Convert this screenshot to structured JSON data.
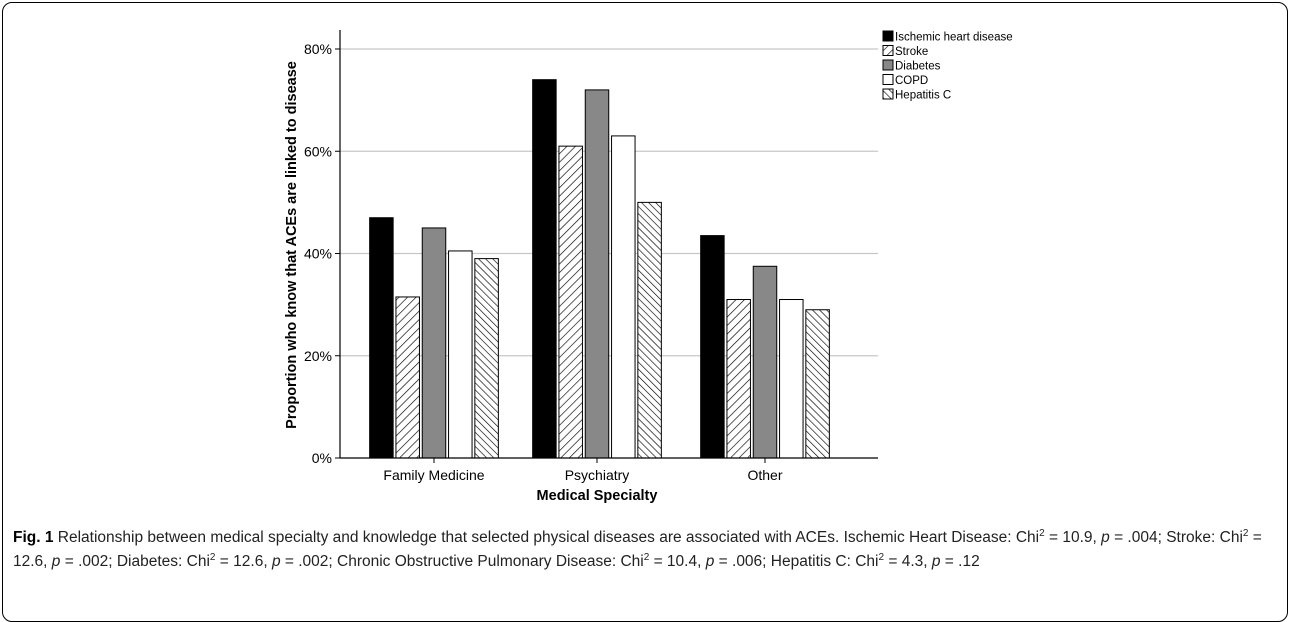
{
  "chart_data": {
    "type": "bar",
    "xlabel": "Medical Specialty",
    "ylabel": "Proportion who know that ACEs are linked to disease",
    "ylim": [
      0,
      80
    ],
    "yticks": [
      "0%",
      "20%",
      "40%",
      "60%",
      "80%"
    ],
    "grid": true,
    "legend_position": "top-right",
    "categories": [
      "Family Medicine",
      "Psychiatry",
      "Other"
    ],
    "series": [
      {
        "name": "Ischemic heart disease",
        "values": [
          47,
          74,
          43.5
        ],
        "fill": "#000000",
        "pattern": "solid"
      },
      {
        "name": "Stroke",
        "values": [
          31.5,
          61,
          31
        ],
        "fill": "#ffffff",
        "pattern": "diagonal-forward"
      },
      {
        "name": "Diabetes",
        "values": [
          45,
          72,
          37.5
        ],
        "fill": "#888888",
        "pattern": "solid"
      },
      {
        "name": "COPD",
        "values": [
          40.5,
          63,
          31
        ],
        "fill": "#ffffff",
        "pattern": "none"
      },
      {
        "name": "Hepatitis C",
        "values": [
          39,
          50,
          29
        ],
        "fill": "#ffffff",
        "pattern": "diagonal-back"
      }
    ]
  },
  "caption": {
    "fig_label": "Fig. 1",
    "text": "Relationship between medical specialty and knowledge that selected physical diseases are associated with ACEs. Ischemic Heart Disease:",
    "stats": [
      {
        "prefix": "Chi",
        "sup": "2",
        "chi": "= 10.9, ",
        "p": "p",
        "pval": "= .004; ",
        "label": "Stroke: "
      },
      {
        "prefix": "Chi",
        "sup": "2",
        "chi": "= 12.6, ",
        "p": "p",
        "pval": "= .002; ",
        "label": "Diabetes: "
      },
      {
        "prefix": "Chi",
        "sup": "2",
        "chi": "= 12.6, ",
        "p": "p",
        "pval": "= .002; ",
        "label": "Chronic Obstructive Pulmonary Disease: "
      },
      {
        "prefix": "Chi",
        "sup": "2",
        "chi": "= 10.4, ",
        "p": "p",
        "pval": "= .006; ",
        "label": "Hepatitis C: "
      },
      {
        "prefix": "Chi",
        "sup": "2",
        "chi": "= 4.3, ",
        "p": "p",
        "pval": "= .12",
        "label": ""
      }
    ]
  }
}
